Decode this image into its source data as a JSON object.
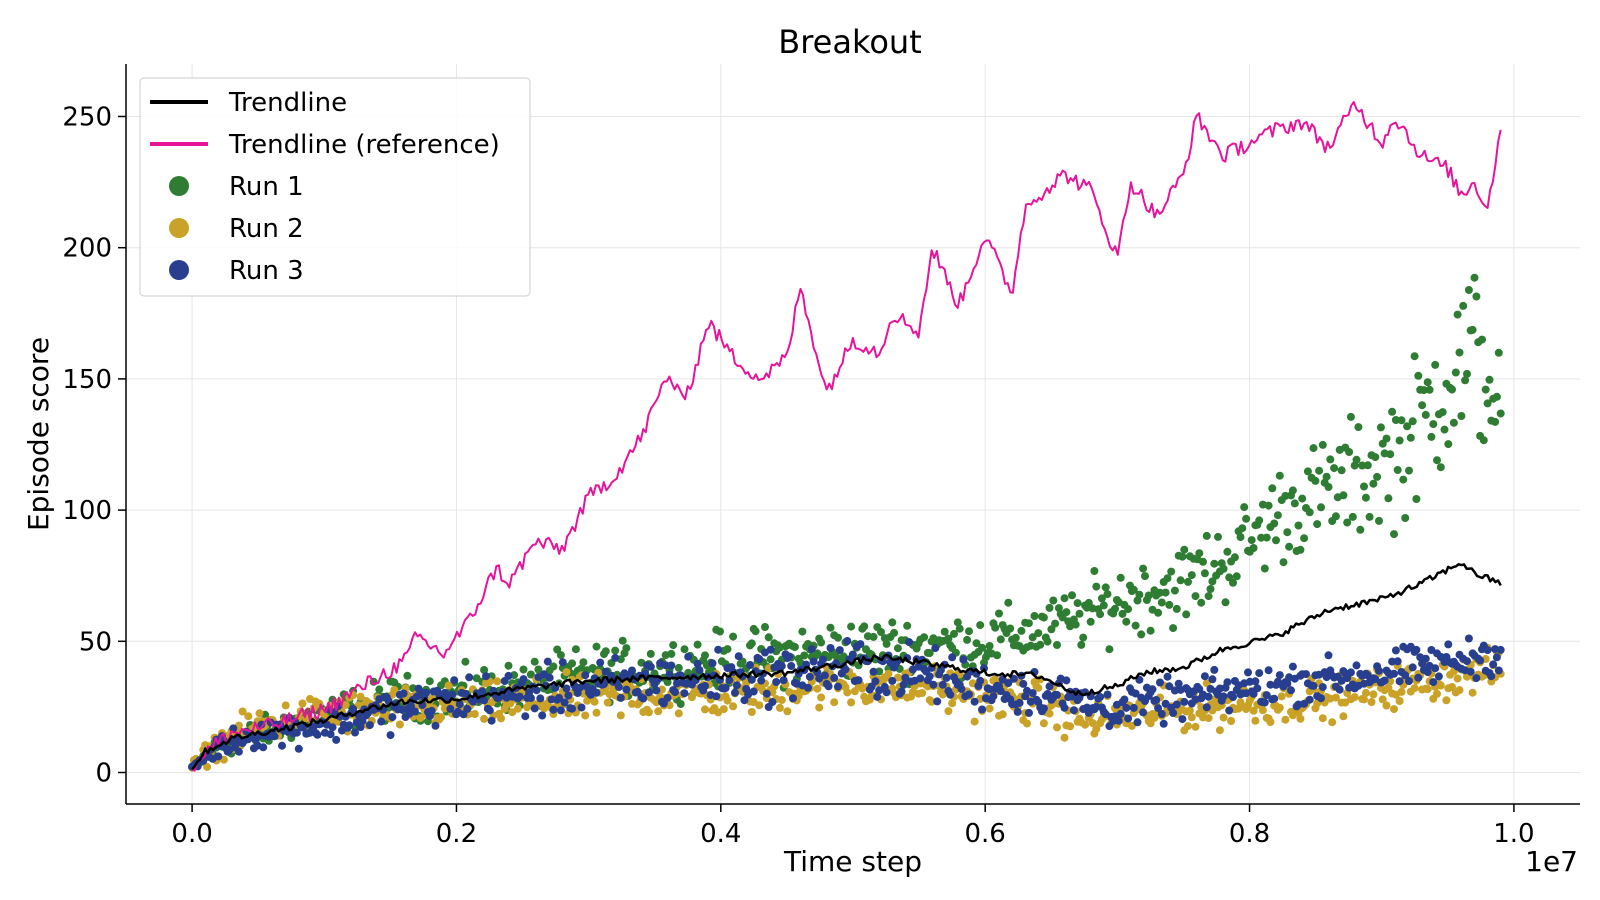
{
  "chart_data": {
    "type": "scatter",
    "title": "Breakout",
    "xlabel": "Time step",
    "ylabel": "Episode score",
    "x_offset_label": "1e7",
    "xlim": [
      -0.05,
      1.05
    ],
    "ylim": [
      -12,
      270
    ],
    "x_ticks": [
      0.0,
      0.2,
      0.4,
      0.6,
      0.8,
      1.0
    ],
    "x_tick_labels": [
      "0.0",
      "0.2",
      "0.4",
      "0.6",
      "0.8",
      "1.0"
    ],
    "y_ticks": [
      0,
      50,
      100,
      150,
      200,
      250
    ],
    "y_tick_labels": [
      "0",
      "50",
      "100",
      "150",
      "200",
      "250"
    ],
    "grid": true,
    "legend_position": "top-left",
    "legend": [
      {
        "label": "Trendline",
        "kind": "line",
        "color": "#000000"
      },
      {
        "label": "Trendline (reference)",
        "kind": "line",
        "color": "#e8139b"
      },
      {
        "label": "Run 1",
        "kind": "marker",
        "color": "#2e7d32"
      },
      {
        "label": "Run 2",
        "kind": "marker",
        "color": "#c9a227"
      },
      {
        "label": "Run 3",
        "kind": "marker",
        "color": "#283f8f"
      }
    ],
    "series": [
      {
        "name": "Trendline (reference)",
        "kind": "line",
        "color": "#e8139b",
        "x": [
          0.0,
          0.01,
          0.03,
          0.06,
          0.1,
          0.13,
          0.16,
          0.17,
          0.19,
          0.21,
          0.23,
          0.24,
          0.26,
          0.28,
          0.3,
          0.32,
          0.34,
          0.36,
          0.37,
          0.38,
          0.39,
          0.41,
          0.43,
          0.45,
          0.46,
          0.48,
          0.5,
          0.52,
          0.53,
          0.55,
          0.56,
          0.58,
          0.6,
          0.62,
          0.63,
          0.64,
          0.66,
          0.68,
          0.7,
          0.71,
          0.73,
          0.75,
          0.76,
          0.78,
          0.8,
          0.82,
          0.84,
          0.86,
          0.88,
          0.9,
          0.91,
          0.93,
          0.95,
          0.96,
          0.97,
          0.98,
          0.99
        ],
        "y": [
          2,
          8,
          15,
          18,
          24,
          33,
          42,
          52,
          45,
          58,
          78,
          72,
          88,
          85,
          105,
          113,
          128,
          152,
          142,
          152,
          172,
          158,
          150,
          158,
          185,
          145,
          165,
          160,
          175,
          168,
          200,
          178,
          205,
          182,
          215,
          220,
          228,
          222,
          196,
          225,
          212,
          228,
          250,
          235,
          240,
          245,
          248,
          238,
          255,
          240,
          250,
          235,
          230,
          220,
          225,
          215,
          245
        ]
      },
      {
        "name": "Trendline",
        "kind": "line",
        "color": "#000000",
        "x": [
          0.0,
          0.01,
          0.03,
          0.06,
          0.1,
          0.13,
          0.16,
          0.2,
          0.25,
          0.3,
          0.35,
          0.4,
          0.45,
          0.5,
          0.52,
          0.55,
          0.6,
          0.64,
          0.67,
          0.7,
          0.72,
          0.75,
          0.78,
          0.82,
          0.86,
          0.9,
          0.93,
          0.96,
          0.97,
          0.99
        ],
        "y": [
          2,
          8,
          13,
          16,
          20,
          24,
          27,
          28,
          32,
          35,
          36,
          37,
          38,
          42,
          44,
          42,
          38,
          37,
          30,
          33,
          38,
          40,
          47,
          52,
          62,
          66,
          72,
          80,
          76,
          72
        ]
      },
      {
        "name": "Run 1",
        "kind": "scatter",
        "color": "#2e7d32",
        "x": [
          0.0,
          0.02,
          0.05,
          0.1,
          0.15,
          0.2,
          0.25,
          0.3,
          0.35,
          0.4,
          0.45,
          0.5,
          0.55,
          0.6,
          0.65,
          0.7,
          0.75,
          0.78,
          0.8,
          0.82,
          0.85,
          0.88,
          0.9,
          0.92,
          0.95,
          0.97,
          0.99
        ],
        "y": [
          2,
          10,
          15,
          22,
          28,
          30,
          33,
          38,
          40,
          42,
          45,
          47,
          48,
          50,
          55,
          65,
          72,
          80,
          88,
          98,
          105,
          112,
          118,
          125,
          150,
          160,
          140
        ],
        "spread": [
          2,
          4,
          5,
          6,
          7,
          8,
          8,
          9,
          9,
          10,
          10,
          10,
          10,
          10,
          10,
          12,
          14,
          14,
          15,
          16,
          18,
          20,
          22,
          24,
          30,
          32,
          20
        ]
      },
      {
        "name": "Run 2",
        "kind": "scatter",
        "color": "#c9a227",
        "x": [
          0.0,
          0.02,
          0.05,
          0.1,
          0.15,
          0.2,
          0.25,
          0.3,
          0.35,
          0.4,
          0.45,
          0.5,
          0.55,
          0.6,
          0.65,
          0.68,
          0.7,
          0.75,
          0.8,
          0.85,
          0.9,
          0.95,
          0.99
        ],
        "y": [
          2,
          11,
          18,
          22,
          24,
          25,
          27,
          28,
          30,
          30,
          32,
          34,
          33,
          30,
          25,
          20,
          22,
          24,
          26,
          28,
          32,
          36,
          40
        ],
        "spread": [
          2,
          5,
          6,
          7,
          7,
          7,
          7,
          8,
          8,
          8,
          8,
          8,
          8,
          8,
          8,
          7,
          7,
          7,
          7,
          7,
          7,
          7,
          6
        ]
      },
      {
        "name": "Run 3",
        "kind": "scatter",
        "color": "#283f8f",
        "x": [
          0.0,
          0.02,
          0.05,
          0.1,
          0.15,
          0.2,
          0.25,
          0.3,
          0.35,
          0.4,
          0.45,
          0.5,
          0.55,
          0.6,
          0.65,
          0.68,
          0.7,
          0.75,
          0.8,
          0.85,
          0.9,
          0.95,
          0.99
        ],
        "y": [
          2,
          10,
          15,
          18,
          24,
          28,
          30,
          32,
          35,
          36,
          38,
          40,
          38,
          33,
          30,
          26,
          25,
          28,
          32,
          35,
          38,
          42,
          45
        ],
        "spread": [
          2,
          4,
          5,
          6,
          7,
          8,
          8,
          9,
          9,
          9,
          9,
          10,
          9,
          8,
          8,
          7,
          7,
          7,
          7,
          7,
          7,
          7,
          6
        ]
      }
    ]
  }
}
